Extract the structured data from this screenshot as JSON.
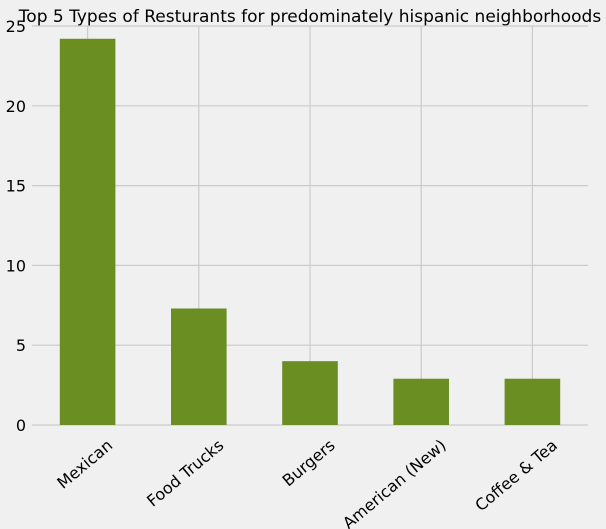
{
  "chart_data": {
    "type": "bar",
    "title": "Top 5 Types of Resturants for predominately hispanic neighborhoods",
    "categories": [
      "Mexican",
      "Food Trucks",
      "Burgers",
      "American (New)",
      "Coffee & Tea"
    ],
    "values": [
      24.2,
      7.3,
      4.0,
      2.9,
      2.9
    ],
    "xlabel": "",
    "ylabel": "",
    "ylim": [
      0,
      25
    ],
    "yticks": [
      "0",
      "5",
      "10",
      "15",
      "20",
      "25"
    ],
    "grid": true,
    "legend": "none",
    "colors": {
      "bar": "#6b8e23",
      "grid": "#cbcbcb",
      "background": "#f0f0f0"
    }
  }
}
